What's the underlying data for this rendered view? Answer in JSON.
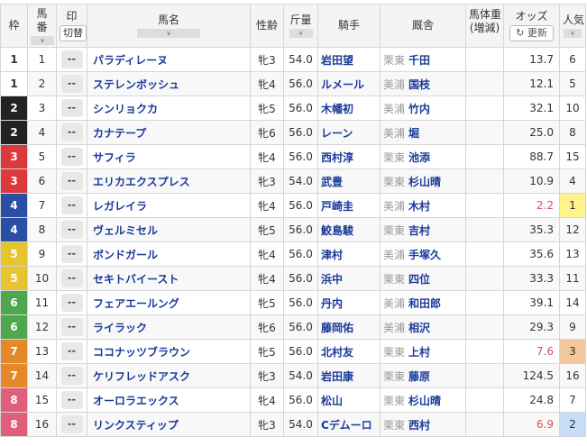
{
  "header": {
    "waku": "枠",
    "umaban": "馬番",
    "mark": "印",
    "mark_toggle": "切替",
    "name": "馬名",
    "sexage": "性齢",
    "weight": "斤量",
    "jockey": "騎手",
    "trainer": "厩舎",
    "bodyweight": "馬体重",
    "bodyweight_sub": "(増減)",
    "odds": "オッズ",
    "odds_refresh": "更新",
    "pop": "人気",
    "sort_icon": "chevron-down-icon",
    "refresh_icon": "refresh-icon"
  },
  "mark_placeholder": "--",
  "colors": {
    "waku1": "#ffffff",
    "waku2": "#222222",
    "waku3": "#dc3a3a",
    "waku4": "#2c4fa6",
    "waku5": "#e6c42e",
    "waku6": "#4ea64e",
    "waku7": "#e5882a",
    "waku8": "#df5f7b",
    "pop1": "#fff38c",
    "pop2": "#c7dcf6",
    "pop3": "#f1c99b",
    "low_odds": "#d25555"
  },
  "rows": [
    {
      "waku": "1",
      "num": "1",
      "name": "パラディレーヌ",
      "sexage": "牝3",
      "kin": "54.0",
      "jockey": "岩田望",
      "region": "栗東",
      "trainer": "千田",
      "odds": "13.7",
      "pop": "6"
    },
    {
      "waku": "1",
      "num": "2",
      "name": "ステレンボッシュ",
      "sexage": "牝4",
      "kin": "56.0",
      "jockey": "ルメール",
      "region": "美浦",
      "trainer": "国枝",
      "odds": "12.1",
      "pop": "5"
    },
    {
      "waku": "2",
      "num": "3",
      "name": "シンリョクカ",
      "sexage": "牝5",
      "kin": "56.0",
      "jockey": "木幡初",
      "region": "美浦",
      "trainer": "竹内",
      "odds": "32.1",
      "pop": "10"
    },
    {
      "waku": "2",
      "num": "4",
      "name": "カナテープ",
      "sexage": "牝6",
      "kin": "56.0",
      "jockey": "レーン",
      "region": "美浦",
      "trainer": "堀",
      "odds": "25.0",
      "pop": "8"
    },
    {
      "waku": "3",
      "num": "5",
      "name": "サフィラ",
      "sexage": "牝4",
      "kin": "56.0",
      "jockey": "西村淳",
      "region": "栗東",
      "trainer": "池添",
      "odds": "88.7",
      "pop": "15"
    },
    {
      "waku": "3",
      "num": "6",
      "name": "エリカエクスプレス",
      "sexage": "牝3",
      "kin": "54.0",
      "jockey": "武豊",
      "region": "栗東",
      "trainer": "杉山晴",
      "odds": "10.9",
      "pop": "4"
    },
    {
      "waku": "4",
      "num": "7",
      "name": "レガレイラ",
      "sexage": "牝4",
      "kin": "56.0",
      "jockey": "戸崎圭",
      "region": "美浦",
      "trainer": "木村",
      "odds": "2.2",
      "pop": "1"
    },
    {
      "waku": "4",
      "num": "8",
      "name": "ヴェルミセル",
      "sexage": "牝5",
      "kin": "56.0",
      "jockey": "鮫島駿",
      "region": "栗東",
      "trainer": "吉村",
      "odds": "35.3",
      "pop": "12"
    },
    {
      "waku": "5",
      "num": "9",
      "name": "ボンドガール",
      "sexage": "牝4",
      "kin": "56.0",
      "jockey": "津村",
      "region": "美浦",
      "trainer": "手塚久",
      "odds": "35.6",
      "pop": "13"
    },
    {
      "waku": "5",
      "num": "10",
      "name": "セキトバイースト",
      "sexage": "牝4",
      "kin": "56.0",
      "jockey": "浜中",
      "region": "栗東",
      "trainer": "四位",
      "odds": "33.3",
      "pop": "11"
    },
    {
      "waku": "6",
      "num": "11",
      "name": "フェアエールング",
      "sexage": "牝5",
      "kin": "56.0",
      "jockey": "丹内",
      "region": "美浦",
      "trainer": "和田郎",
      "odds": "39.1",
      "pop": "14"
    },
    {
      "waku": "6",
      "num": "12",
      "name": "ライラック",
      "sexage": "牝6",
      "kin": "56.0",
      "jockey": "藤岡佑",
      "region": "美浦",
      "trainer": "相沢",
      "odds": "29.3",
      "pop": "9"
    },
    {
      "waku": "7",
      "num": "13",
      "name": "ココナッツブラウン",
      "sexage": "牝5",
      "kin": "56.0",
      "jockey": "北村友",
      "region": "栗東",
      "trainer": "上村",
      "odds": "7.6",
      "pop": "3"
    },
    {
      "waku": "7",
      "num": "14",
      "name": "ケリフレッドアスク",
      "sexage": "牝3",
      "kin": "54.0",
      "jockey": "岩田康",
      "region": "栗東",
      "trainer": "藤原",
      "odds": "124.5",
      "pop": "16"
    },
    {
      "waku": "8",
      "num": "15",
      "name": "オーロラエックス",
      "sexage": "牝4",
      "kin": "56.0",
      "jockey": "松山",
      "region": "栗東",
      "trainer": "杉山晴",
      "odds": "24.8",
      "pop": "7"
    },
    {
      "waku": "8",
      "num": "16",
      "name": "リンクスティップ",
      "sexage": "牝3",
      "kin": "54.0",
      "jockey": "Cデムーロ",
      "region": "栗東",
      "trainer": "西村",
      "odds": "6.9",
      "pop": "2"
    }
  ]
}
